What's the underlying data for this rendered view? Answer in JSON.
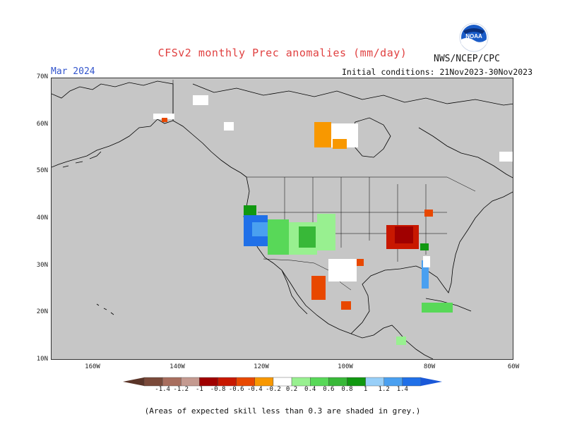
{
  "title": "CFSv2 monthly Prec anomalies (mm/day)",
  "agency": "NWS/NCEP/CPC",
  "month_label": "Mar 2024",
  "initial_conditions": "Initial conditions: 21Nov2023-30Nov2023",
  "logo_text": "NOAA",
  "note": "(Areas of expected skill less than 0.3 are shaded in grey.)",
  "axes": {
    "lat_labels": [
      "70N",
      "60N",
      "50N",
      "40N",
      "30N",
      "20N",
      "10N"
    ],
    "lon_labels": [
      "160W",
      "140W",
      "120W",
      "100W",
      "80W",
      "60W"
    ]
  },
  "colorbar": {
    "labels": [
      "-1.4",
      "-1.2",
      "-1",
      "-0.8",
      "-0.6",
      "-0.4",
      "-0.2",
      "0.2",
      "0.4",
      "0.6",
      "0.8",
      "1",
      "1.2",
      "1.4"
    ],
    "colors": [
      "#7a4a3a",
      "#a86e5e",
      "#c49a90",
      "#a00000",
      "#c81800",
      "#e84800",
      "#f89800",
      "#ffffff",
      "#98f090",
      "#58d858",
      "#38b838",
      "#109810",
      "#98cff8",
      "#4aa0f0",
      "#2070e8"
    ]
  },
  "colors": {
    "land_skill_mask": "#c6c6c6",
    "coastline": "#000000",
    "frame": "#333333"
  }
}
